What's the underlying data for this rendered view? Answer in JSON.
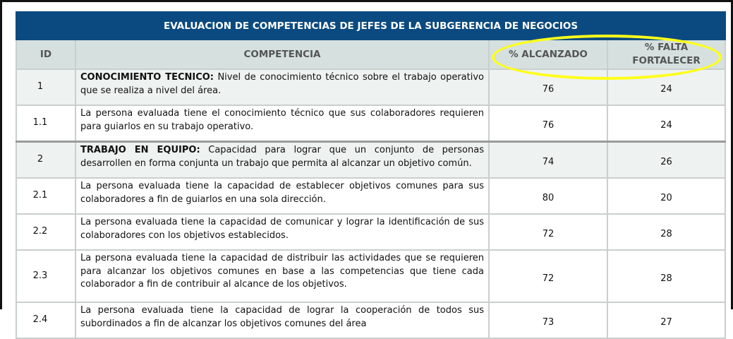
{
  "title": "EVALUACION DE COMPETENCIAS DE JEFES DE LA SUBGERENCIA DE NEGOCIOS",
  "headers": {
    "id": "ID",
    "competencia": "COMPETENCIA",
    "alcanzado": "% ALCANZADO",
    "falta_1": "% FALTA",
    "falta_2": "FORTALECER"
  },
  "highlight_color": "#ffff1a",
  "header_bg": "#0b4a80",
  "rows": [
    {
      "id": "1",
      "bold": "CONOCIMIENTO TECNICO:",
      "text": " Nivel de conocimiento técnico sobre el trabajo operativo que se realiza a nivel del área.",
      "alcanzado": "76",
      "falta": "24"
    },
    {
      "id": "1.1",
      "bold": "",
      "text": "La persona evaluada tiene el conocimiento técnico que sus colaboradores requieren para guiarlos en su trabajo operativo.",
      "alcanzado": "76",
      "falta": "24"
    },
    {
      "id": "2",
      "bold": "TRABAJO EN EQUIPO:",
      "text": " Capacidad para lograr que un conjunto de personas desarrollen en forma conjunta un trabajo que permita al alcanzar un objetivo común.",
      "alcanzado": "74",
      "falta": "26"
    },
    {
      "id": "2.1",
      "bold": "",
      "text": "La persona evaluada tiene la capacidad de establecer objetivos comunes para sus colaboradores a fin de guiarlos en una sola dirección.",
      "alcanzado": "80",
      "falta": "20"
    },
    {
      "id": "2.2",
      "bold": "",
      "text": "La persona evaluada tiene la capacidad de comunicar y lograr la identificación de sus colaboradores con los objetivos establecidos.",
      "alcanzado": "72",
      "falta": "28"
    },
    {
      "id": "2.3",
      "bold": "",
      "text": "La persona evaluada tiene la capacidad de distribuir las actividades que se requieren para alcanzar los objetivos comunes en base a las competencias que tiene cada colaborador a fin de contribuir al alcance de los objetivos.",
      "alcanzado": "72",
      "falta": "28"
    },
    {
      "id": "2.4",
      "bold": "",
      "text": "La persona evaluada tiene la capacidad de lograr la cooperación de todos sus subordinados a fin de alcanzar los objetivos comunes del área",
      "alcanzado": "73",
      "falta": "27"
    }
  ]
}
